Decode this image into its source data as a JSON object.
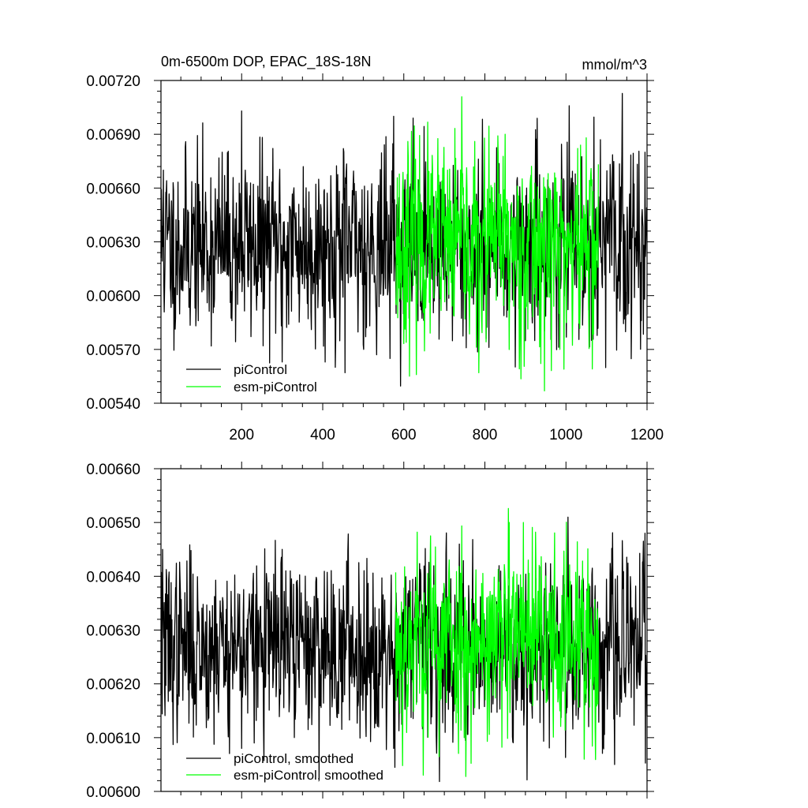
{
  "chart_data": [
    {
      "type": "line",
      "title": "0m-6500m DOP, EPAC_18S-18N",
      "units": "mmol/m^3",
      "xlim": [
        1,
        1200
      ],
      "ylim": [
        0.0054,
        0.0072
      ],
      "yticks": [
        "0.00540",
        "0.00570",
        "0.00600",
        "0.00630",
        "0.00660",
        "0.00690",
        "0.00720"
      ],
      "xticks": [
        "200",
        "400",
        "600",
        "800",
        "1000",
        "1200"
      ],
      "legend_position": "bottom-left",
      "grid": false,
      "series": [
        {
          "name": "piControl",
          "color": "#000000",
          "x_range": [
            1,
            1200
          ],
          "mean": 0.00628,
          "sd": 0.00025,
          "seed": 11,
          "peaks": [
            [
              7,
              0.0067
            ],
            [
              200,
              0.00703
            ],
            [
              300,
              0.00563
            ],
            [
              455,
              0.00557
            ],
            [
              575,
              0.007
            ],
            [
              1085,
              0.00687
            ],
            [
              1195,
              0.0068
            ]
          ],
          "notes": "noisy annual series fluctuating around ~0.00628"
        },
        {
          "name": "esm-piControl",
          "color": "#00ff00",
          "x_range": [
            580,
            1080
          ],
          "mean": 0.00628,
          "sd": 0.00027,
          "seed": 23,
          "peaks": [
            [
              610,
              0.00686
            ],
            [
              785,
              0.00557
            ],
            [
              850,
              0.0069
            ],
            [
              995,
              0.00559
            ],
            [
              1050,
              0.00688
            ]
          ],
          "notes": "noisy annual series fluctuating around ~0.00628"
        }
      ]
    },
    {
      "type": "line",
      "title": "",
      "xlim": [
        1,
        1200
      ],
      "ylim": [
        0.006,
        0.0066
      ],
      "yticks": [
        "0.00600",
        "0.00610",
        "0.00620",
        "0.00630",
        "0.00640",
        "0.00650",
        "0.00660"
      ],
      "legend_position": "bottom-left",
      "grid": false,
      "series": [
        {
          "name": "piControl, smoothed",
          "color": "#000000",
          "x_range": [
            1,
            1200
          ],
          "mean": 0.00627,
          "sd": 8e-05,
          "seed": 37,
          "peaks": [
            [
              5,
              0.00645
            ],
            [
              200,
              0.00608
            ],
            [
              300,
              0.00645
            ],
            [
              575,
              0.00608
            ],
            [
              1005,
              0.00651
            ],
            [
              1120,
              0.00605
            ],
            [
              1195,
              0.00648
            ]
          ],
          "notes": "smoothed series fluctuating around ~0.00627"
        },
        {
          "name": "esm-piControl, smoothed",
          "color": "#00ff00",
          "x_range": [
            580,
            1080
          ],
          "mean": 0.00628,
          "sd": 9e-05,
          "seed": 53,
          "peaks": [
            [
              860,
              0.0065
            ],
            [
              895,
              0.0065
            ],
            [
              1045,
              0.00606
            ]
          ],
          "notes": "smoothed series fluctuating around ~0.00628"
        }
      ]
    }
  ]
}
